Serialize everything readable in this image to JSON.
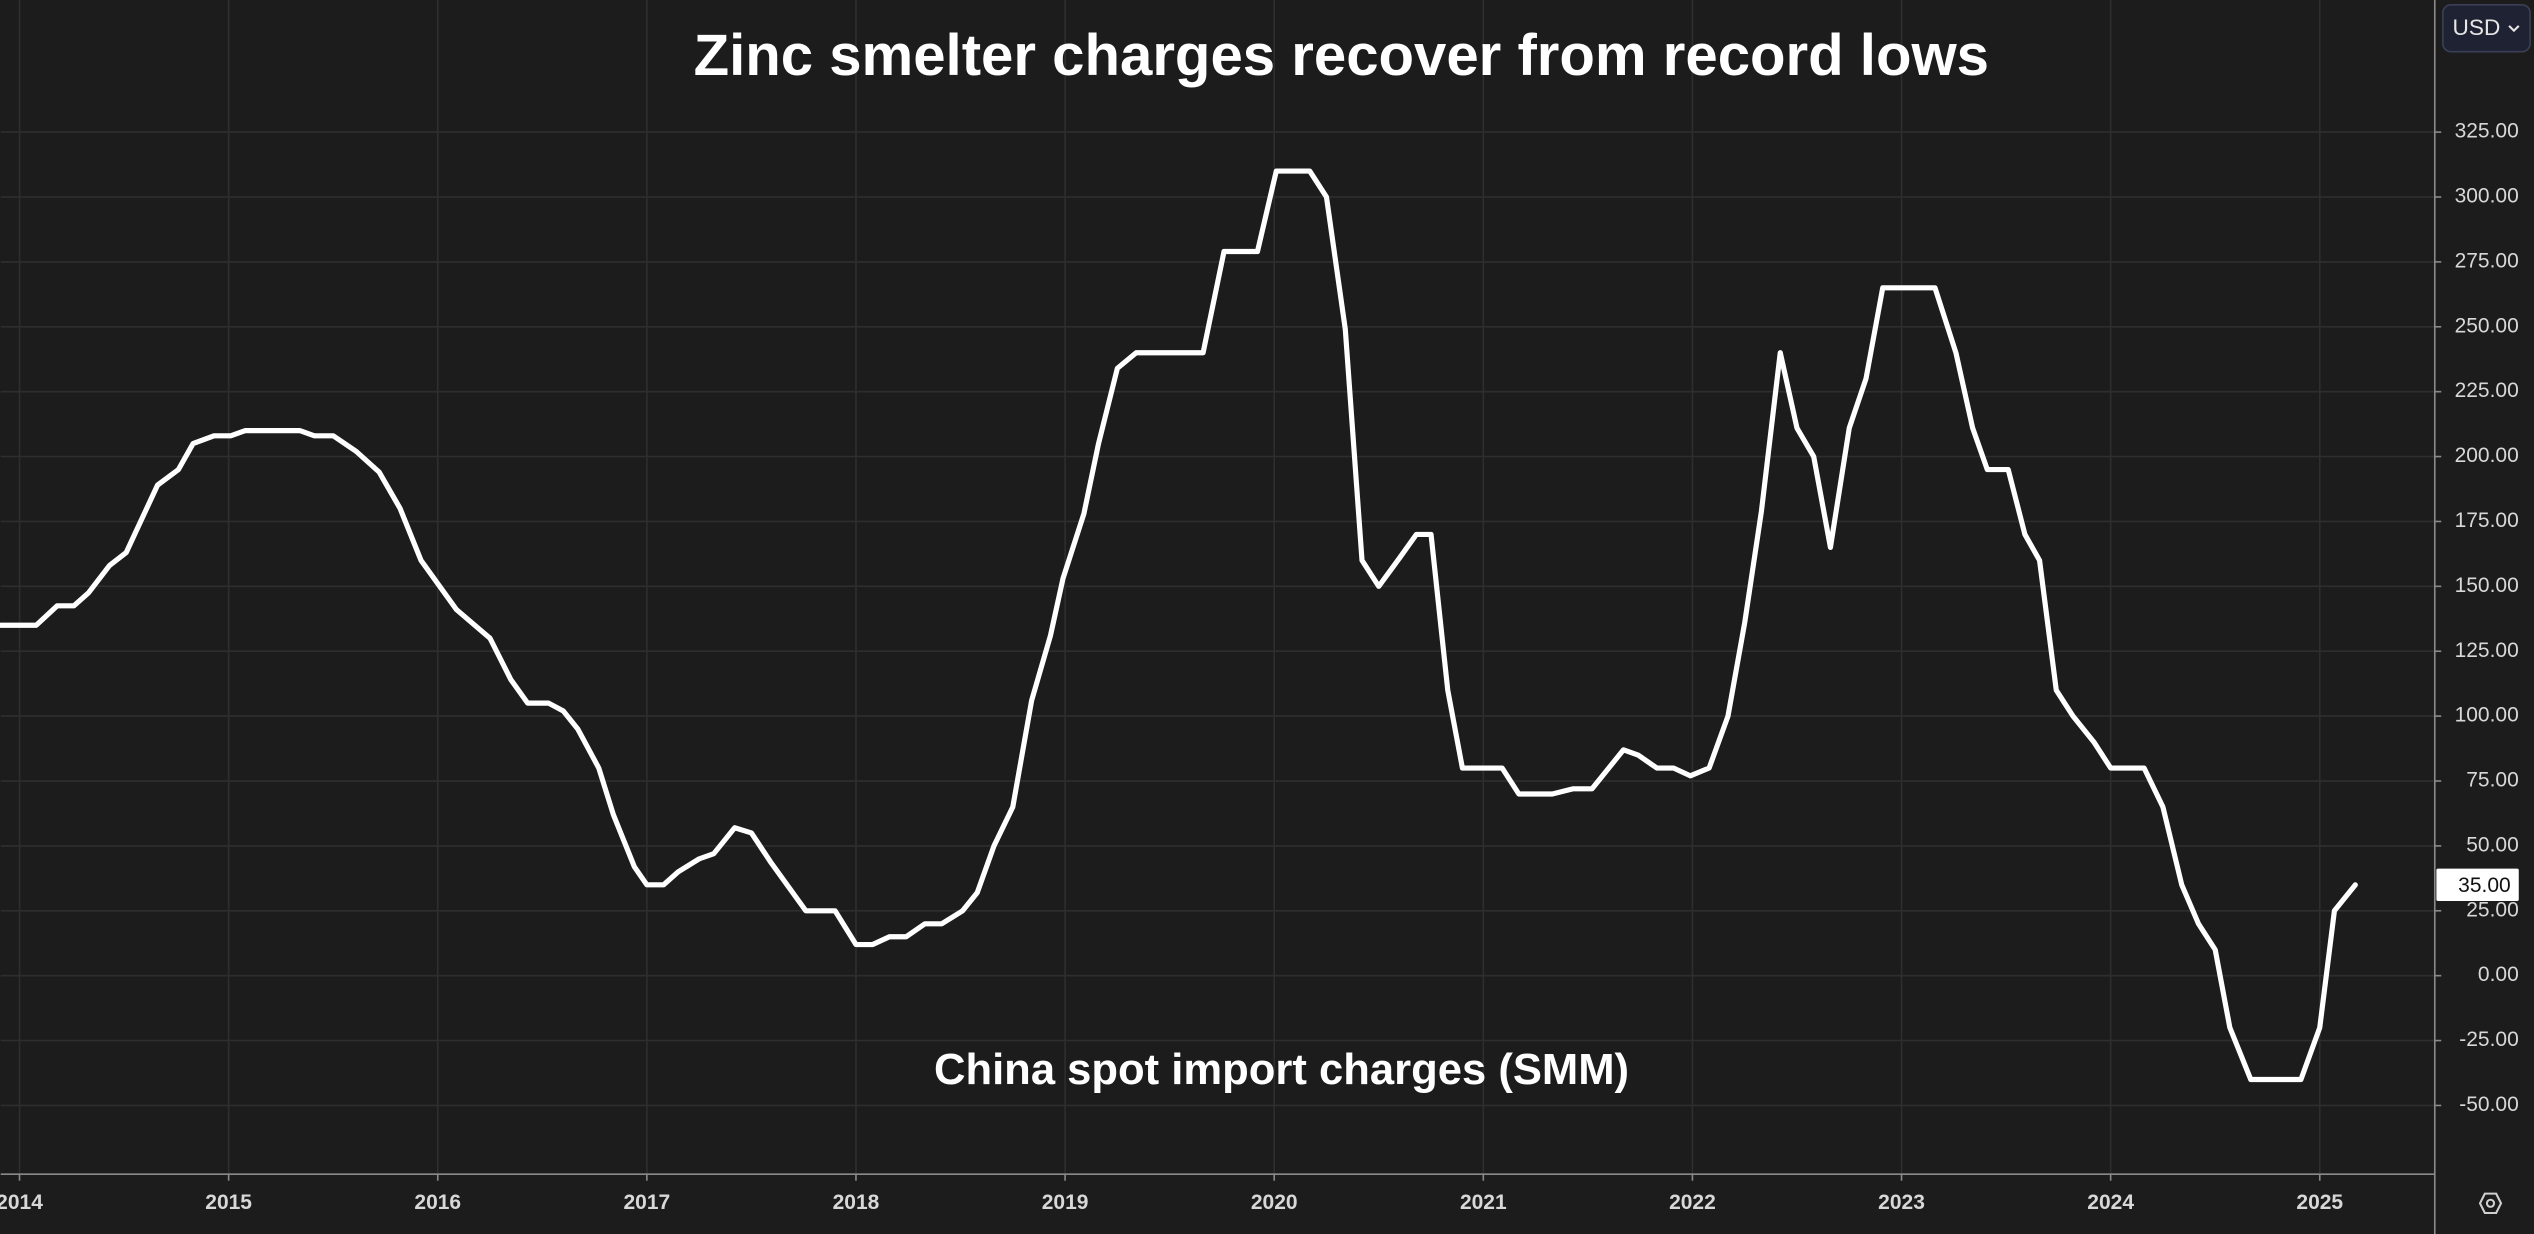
{
  "chart_data": {
    "type": "line",
    "title": "Zinc smelter charges recover from record lows",
    "annotation": "China spot import charges (SMM)",
    "currency": "USD",
    "color": "#ffffff",
    "grid": true,
    "x": [
      2013.91,
      2014.08,
      2014.18,
      2014.26,
      2014.33,
      2014.43,
      2014.51,
      2014.66,
      2014.76,
      2014.83,
      2014.93,
      2015.01,
      2015.08,
      2015.34,
      2015.41,
      2015.5,
      2015.61,
      2015.72,
      2015.82,
      2015.92,
      2016.09,
      2016.25,
      2016.35,
      2016.43,
      2016.53,
      2016.6,
      2016.67,
      2016.77,
      2016.84,
      2016.94,
      2017.0,
      2017.08,
      2017.15,
      2017.25,
      2017.32,
      2017.42,
      2017.5,
      2017.59,
      2017.76,
      2017.9,
      2018.0,
      2018.08,
      2018.16,
      2018.24,
      2018.33,
      2018.41,
      2018.51,
      2018.58,
      2018.66,
      2018.75,
      2018.84,
      2018.93,
      2018.99,
      2019.09,
      2019.16,
      2019.25,
      2019.34,
      2019.66,
      2019.76,
      2019.92,
      2020.01,
      2020.17,
      2020.25,
      2020.34,
      2020.42,
      2020.5,
      2020.6,
      2020.68,
      2020.75,
      2020.83,
      2020.9,
      2021.09,
      2021.17,
      2021.33,
      2021.43,
      2021.52,
      2021.67,
      2021.74,
      2021.83,
      2021.91,
      2021.99,
      2022.08,
      2022.17,
      2022.25,
      2022.33,
      2022.42,
      2022.5,
      2022.58,
      2022.66,
      2022.75,
      2022.83,
      2022.91,
      2023.16,
      2023.26,
      2023.34,
      2023.41,
      2023.51,
      2023.59,
      2023.66,
      2023.74,
      2023.82,
      2023.92,
      2024.0,
      2024.16,
      2024.25,
      2024.34,
      2024.42,
      2024.5,
      2024.57,
      2024.67,
      2024.91,
      2025.0,
      2025.07,
      2025.17
    ],
    "values": [
      135,
      135,
      142.5,
      142.5,
      147.5,
      158,
      163,
      189,
      195,
      205,
      208,
      208,
      210,
      210,
      208,
      208,
      202,
      194,
      180,
      160,
      141,
      130,
      114,
      105,
      105,
      102,
      95,
      80,
      62,
      42,
      35,
      35,
      40,
      45,
      47,
      57,
      55,
      44,
      25,
      25,
      12,
      12,
      15,
      15,
      20,
      20,
      25,
      32,
      50,
      65,
      106,
      131,
      153,
      178,
      205,
      234,
      240,
      240,
      279,
      279,
      310,
      310,
      300,
      249,
      160,
      150,
      161,
      170,
      170,
      110,
      80,
      80,
      70,
      70,
      72,
      72,
      87,
      85,
      80,
      80,
      77,
      80,
      100,
      136,
      179,
      240,
      211,
      200,
      165,
      211,
      230,
      265,
      265,
      240,
      211,
      195,
      195,
      170,
      160,
      110,
      100,
      90,
      80,
      80,
      65,
      35,
      20,
      10,
      -20,
      -40,
      -40,
      -20,
      25,
      35
    ],
    "last_value": {
      "value": 35,
      "label": "35.00"
    },
    "xlim": [
      2013.91,
      2025.55
    ],
    "xticks": [
      2014,
      2015,
      2016,
      2017,
      2018,
      2019,
      2020,
      2021,
      2022,
      2023,
      2024,
      2025
    ],
    "ylim": [
      -76.5,
      375.9
    ],
    "yticks": [
      {
        "value": -50,
        "label": "-50.00"
      },
      {
        "value": -25,
        "label": "-25.00"
      },
      {
        "value": 0,
        "label": "0.00"
      },
      {
        "value": 25,
        "label": "25.00"
      },
      {
        "value": 50,
        "label": "50.00"
      },
      {
        "value": 75,
        "label": "75.00"
      },
      {
        "value": 100,
        "label": "100.00"
      },
      {
        "value": 125,
        "label": "125.00"
      },
      {
        "value": 150,
        "label": "150.00"
      },
      {
        "value": 175,
        "label": "175.00"
      },
      {
        "value": 200,
        "label": "200.00"
      },
      {
        "value": 225,
        "label": "225.00"
      },
      {
        "value": 250,
        "label": "250.00"
      },
      {
        "value": 275,
        "label": "275.00"
      },
      {
        "value": 300,
        "label": "300.00"
      },
      {
        "value": 325,
        "label": "325.00"
      }
    ]
  }
}
